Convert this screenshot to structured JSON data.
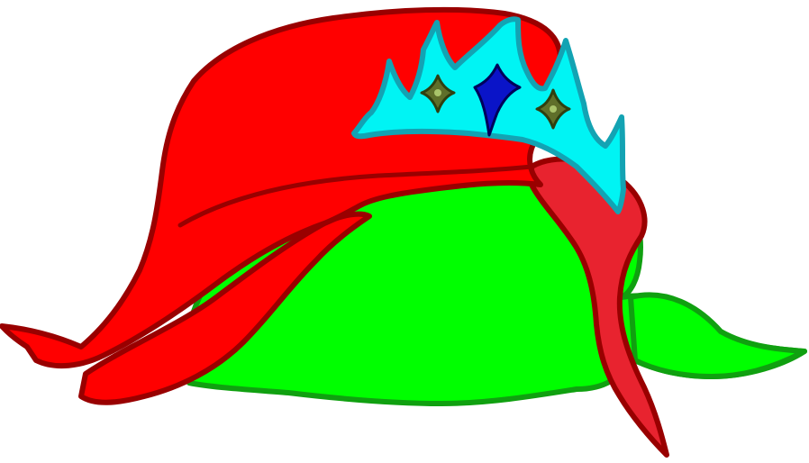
{
  "illustration": {
    "subject": "hair-with-tiara",
    "colors": {
      "background": "#ffffff",
      "head_fill": "#00ff00",
      "head_stroke": "#10a010",
      "hair_fill": "#ff0000",
      "hair_stroke": "#990000",
      "back_lock_fill": "#e8232f",
      "tiara_fill": "#00f4f4",
      "tiara_stroke": "#13a3b3",
      "center_gem_fill": "#0a14c8",
      "center_gem_stroke": "#00005a",
      "side_gem_fill": "#5f6f2a",
      "side_gem_stroke": "#2f3f10",
      "gem_sparkle": "#a9c46a"
    }
  }
}
